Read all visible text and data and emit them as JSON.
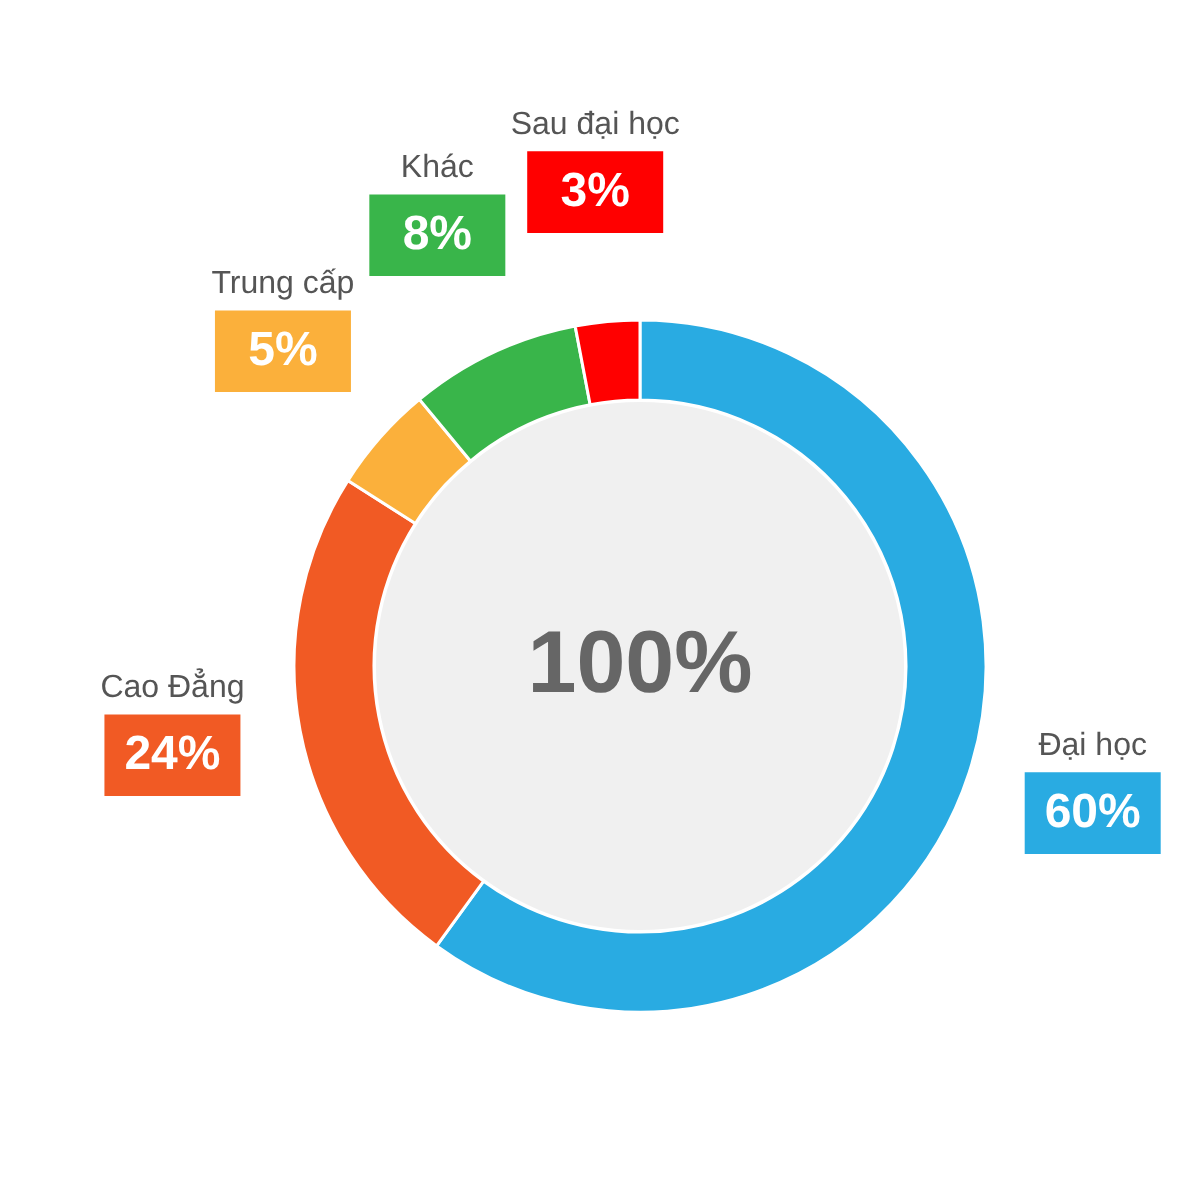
{
  "chart_data": {
    "type": "donut",
    "categories": [
      "Đại học",
      "Cao Đẳng",
      "Trung cấp",
      "Khác",
      "Sau đại học"
    ],
    "values": [
      60,
      24,
      5,
      8,
      3
    ],
    "colors": [
      "#29abe2",
      "#f15a24",
      "#fbb03b",
      "#39b54a",
      "#ff0000"
    ],
    "value_labels": [
      "60%",
      "24%",
      "5%",
      "8%",
      "3%"
    ],
    "annotations": [
      "100%"
    ]
  }
}
